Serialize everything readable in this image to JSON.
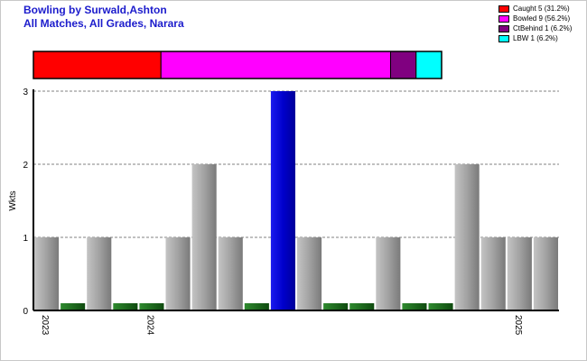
{
  "header": {
    "title": "Bowling by Surwald,Ashton",
    "subtitle": "All Matches, All Grades, Narara"
  },
  "legend": [
    {
      "label": "Caught 5 (31.2%)",
      "color": "#ff0000"
    },
    {
      "label": "Bowled 9 (56.2%)",
      "color": "#ff00ff"
    },
    {
      "label": "CtBehind 1 (6.2%)",
      "color": "#800080"
    },
    {
      "label": "LBW 1 (6.2%)",
      "color": "#00ffff"
    }
  ],
  "chart_data": {
    "type": "bar",
    "ylabel": "Wkts",
    "ylim": [
      0,
      3
    ],
    "yticks": [
      0,
      1,
      2,
      3
    ],
    "grid": true,
    "values": [
      1,
      0,
      1,
      0,
      0,
      1,
      2,
      1,
      0,
      3,
      1,
      0,
      0,
      1,
      0,
      0,
      2,
      1,
      1,
      1
    ],
    "highlight_index": 9,
    "x_tick_labels": [
      {
        "label": "2023",
        "index": 0
      },
      {
        "label": "2024",
        "index": 4
      },
      {
        "label": "2025",
        "index": 18
      }
    ],
    "dismissal_breakdown": [
      {
        "name": "Caught",
        "count": 5,
        "color": "#ff0000"
      },
      {
        "name": "Bowled",
        "count": 9,
        "color": "#ff00ff"
      },
      {
        "name": "CtBehind",
        "count": 1,
        "color": "#800080"
      },
      {
        "name": "LBW",
        "count": 1,
        "color": "#00ffff"
      }
    ],
    "colors": {
      "bar": "#a0a0a0",
      "highlight": "#0000cc",
      "zero": "#1f6b1f"
    }
  }
}
